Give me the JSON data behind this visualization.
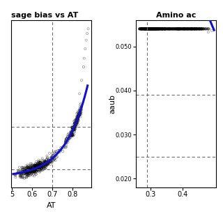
{
  "title_left": "sage bias vs AT",
  "title_right": "Amino ac",
  "plot1": {
    "xlabel": "AT",
    "ylabel": "",
    "xlim": [
      0.495,
      0.895
    ],
    "ylim": [
      -0.65,
      1.85
    ],
    "xticks": [
      0.5,
      0.6,
      0.7,
      0.8
    ],
    "xticklabels": [
      "5",
      "0.6",
      "0.7",
      "0.8"
    ],
    "vline_x": 0.7,
    "hline_y1": 0.25,
    "hline_y2": -0.38
  },
  "plot2": {
    "xlabel": "",
    "ylabel": "aaub",
    "xlim": [
      0.255,
      0.505
    ],
    "ylim": [
      0.018,
      0.056
    ],
    "xticks": [
      0.3,
      0.4
    ],
    "xticklabels": [
      "0.3",
      "0.4"
    ],
    "yticks": [
      0.02,
      0.03,
      0.04,
      0.05
    ],
    "yticklabels": [
      "0.020",
      "0.030",
      "0.040",
      "0.050"
    ],
    "vline_x": 0.29,
    "hline_y1": 0.039,
    "hline_y2": 0.025
  },
  "scatter_alpha": 0.5,
  "scatter_size": 5,
  "line_color": "#1111cc",
  "line_width": 2.2,
  "bg_color": "#ffffff",
  "dashed_color": "#666666",
  "title_fontsize": 8,
  "tick_fontsize": 7
}
